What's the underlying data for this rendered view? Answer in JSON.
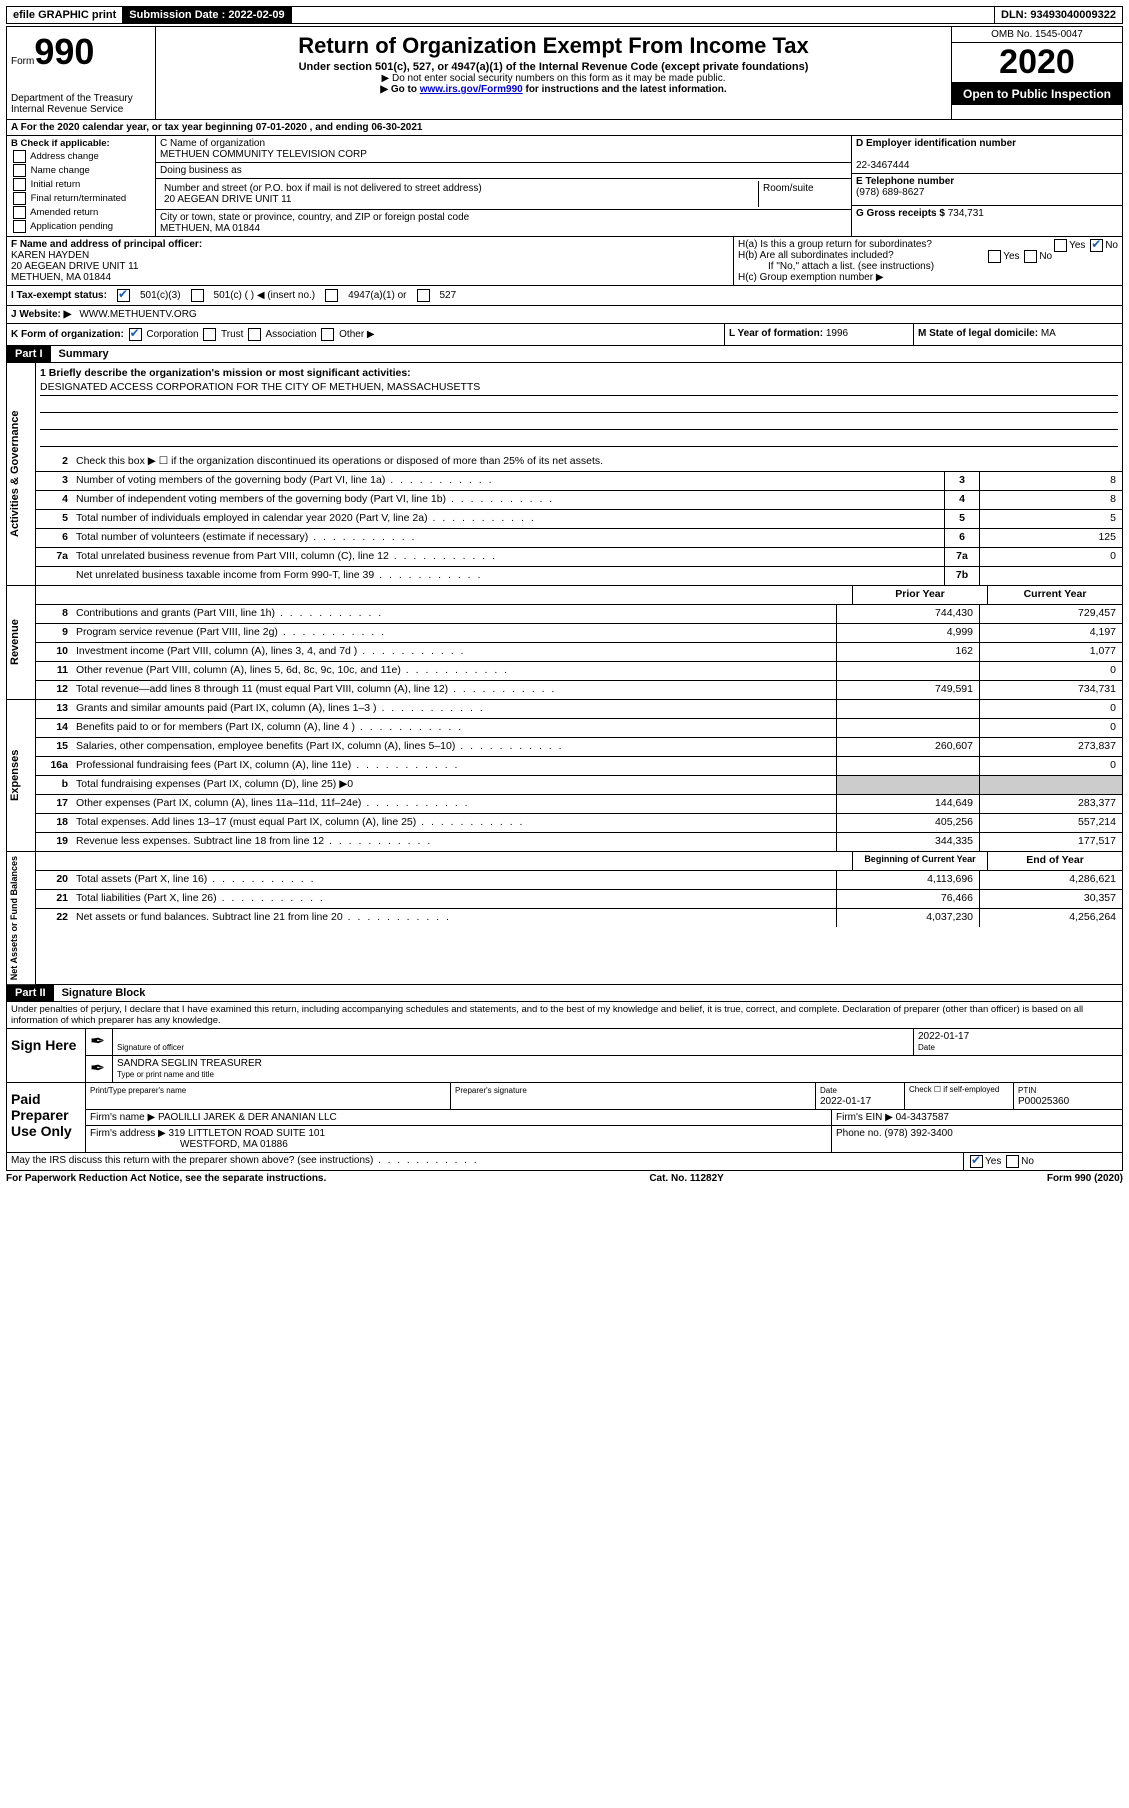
{
  "topbar": {
    "efile": "efile GRAPHIC print",
    "submission_label": "Submission Date : 2022-02-09",
    "dln": "DLN: 93493040009322"
  },
  "header": {
    "form_label": "Form",
    "form_number": "990",
    "dept": "Department of the Treasury",
    "irs": "Internal Revenue Service",
    "title": "Return of Organization Exempt From Income Tax",
    "subtitle": "Under section 501(c), 527, or 4947(a)(1) of the Internal Revenue Code (except private foundations)",
    "instr1": "▶ Do not enter social security numbers on this form as it may be made public.",
    "instr2_pre": "▶ Go to ",
    "instr2_link": "www.irs.gov/Form990",
    "instr2_post": " for instructions and the latest information.",
    "omb": "OMB No. 1545-0047",
    "year": "2020",
    "open": "Open to Public Inspection"
  },
  "rowA": "A For the 2020 calendar year, or tax year beginning 07-01-2020   , and ending 06-30-2021",
  "B": {
    "label": "B Check if applicable:",
    "opts": [
      "Address change",
      "Name change",
      "Initial return",
      "Final return/terminated",
      "Amended return",
      "Application pending"
    ]
  },
  "C": {
    "name_label": "C Name of organization",
    "name": "METHUEN COMMUNITY TELEVISION CORP",
    "dba_label": "Doing business as",
    "addr_label": "Number and street (or P.O. box if mail is not delivered to street address)",
    "room_label": "Room/suite",
    "addr": "20 AEGEAN DRIVE UNIT 11",
    "city_label": "City or town, state or province, country, and ZIP or foreign postal code",
    "city": "METHUEN, MA  01844"
  },
  "D": {
    "label": "D Employer identification number",
    "val": "22-3467444"
  },
  "E": {
    "label": "E Telephone number",
    "val": "(978) 689-8627"
  },
  "G": {
    "label": "G Gross receipts $",
    "val": "734,731"
  },
  "F": {
    "label": "F  Name and address of principal officer:",
    "name": "KAREN HAYDEN",
    "addr1": "20 AEGEAN DRIVE UNIT 11",
    "addr2": "METHUEN, MA  01844"
  },
  "H": {
    "a": "H(a)  Is this a group return for subordinates?",
    "b": "H(b)  Are all subordinates included?",
    "b_note": "If \"No,\" attach a list. (see instructions)",
    "c": "H(c)  Group exemption number ▶"
  },
  "I": {
    "label": "I  Tax-exempt status:",
    "o1": "501(c)(3)",
    "o2": "501(c) (   ) ◀ (insert no.)",
    "o3": "4947(a)(1) or",
    "o4": "527"
  },
  "J": {
    "label": "J  Website: ▶",
    "val": "WWW.METHUENTV.ORG"
  },
  "K": {
    "label": "K Form of organization:",
    "opts": [
      "Corporation",
      "Trust",
      "Association",
      "Other ▶"
    ]
  },
  "L": {
    "label": "L Year of formation:",
    "val": "1996"
  },
  "M": {
    "label": "M State of legal domicile:",
    "val": "MA"
  },
  "partI": {
    "header": "Part I",
    "title": "Summary",
    "side1": "Activities & Governance",
    "side2": "Revenue",
    "side3": "Expenses",
    "side4": "Net Assets or Fund Balances",
    "l1_label": "1  Briefly describe the organization's mission or most significant activities:",
    "l1_val": "DESIGNATED ACCESS CORPORATION FOR THE CITY OF METHUEN, MASSACHUSETTS",
    "l2": "Check this box ▶ ☐  if the organization discontinued its operations or disposed of more than 25% of its net assets.",
    "lines_gov": [
      {
        "n": "3",
        "d": "Number of voting members of the governing body (Part VI, line 1a)",
        "b": "3",
        "v": "8"
      },
      {
        "n": "4",
        "d": "Number of independent voting members of the governing body (Part VI, line 1b)",
        "b": "4",
        "v": "8"
      },
      {
        "n": "5",
        "d": "Total number of individuals employed in calendar year 2020 (Part V, line 2a)",
        "b": "5",
        "v": "5"
      },
      {
        "n": "6",
        "d": "Total number of volunteers (estimate if necessary)",
        "b": "6",
        "v": "125"
      },
      {
        "n": "7a",
        "d": "Total unrelated business revenue from Part VIII, column (C), line 12",
        "b": "7a",
        "v": "0"
      },
      {
        "n": "",
        "d": "Net unrelated business taxable income from Form 990-T, line 39",
        "b": "7b",
        "v": ""
      }
    ],
    "col_prior": "Prior Year",
    "col_current": "Current Year",
    "lines_rev": [
      {
        "n": "8",
        "d": "Contributions and grants (Part VIII, line 1h)",
        "p": "744,430",
        "c": "729,457"
      },
      {
        "n": "9",
        "d": "Program service revenue (Part VIII, line 2g)",
        "p": "4,999",
        "c": "4,197"
      },
      {
        "n": "10",
        "d": "Investment income (Part VIII, column (A), lines 3, 4, and 7d )",
        "p": "162",
        "c": "1,077"
      },
      {
        "n": "11",
        "d": "Other revenue (Part VIII, column (A), lines 5, 6d, 8c, 9c, 10c, and 11e)",
        "p": "",
        "c": "0"
      },
      {
        "n": "12",
        "d": "Total revenue—add lines 8 through 11 (must equal Part VIII, column (A), line 12)",
        "p": "749,591",
        "c": "734,731"
      }
    ],
    "lines_exp": [
      {
        "n": "13",
        "d": "Grants and similar amounts paid (Part IX, column (A), lines 1–3 )",
        "p": "",
        "c": "0"
      },
      {
        "n": "14",
        "d": "Benefits paid to or for members (Part IX, column (A), line 4 )",
        "p": "",
        "c": "0"
      },
      {
        "n": "15",
        "d": "Salaries, other compensation, employee benefits (Part IX, column (A), lines 5–10)",
        "p": "260,607",
        "c": "273,837"
      },
      {
        "n": "16a",
        "d": "Professional fundraising fees (Part IX, column (A), line 11e)",
        "p": "",
        "c": "0"
      },
      {
        "n": "b",
        "d": "Total fundraising expenses (Part IX, column (D), line 25) ▶0",
        "grey": true
      },
      {
        "n": "17",
        "d": "Other expenses (Part IX, column (A), lines 11a–11d, 11f–24e)",
        "p": "144,649",
        "c": "283,377"
      },
      {
        "n": "18",
        "d": "Total expenses. Add lines 13–17 (must equal Part IX, column (A), line 25)",
        "p": "405,256",
        "c": "557,214"
      },
      {
        "n": "19",
        "d": "Revenue less expenses. Subtract line 18 from line 12",
        "p": "344,335",
        "c": "177,517"
      }
    ],
    "col_beg": "Beginning of Current Year",
    "col_end": "End of Year",
    "lines_net": [
      {
        "n": "20",
        "d": "Total assets (Part X, line 16)",
        "p": "4,113,696",
        "c": "4,286,621"
      },
      {
        "n": "21",
        "d": "Total liabilities (Part X, line 26)",
        "p": "76,466",
        "c": "30,357"
      },
      {
        "n": "22",
        "d": "Net assets or fund balances. Subtract line 21 from line 20",
        "p": "4,037,230",
        "c": "4,256,264"
      }
    ]
  },
  "partII": {
    "header": "Part II",
    "title": "Signature Block",
    "decl": "Under penalties of perjury, I declare that I have examined this return, including accompanying schedules and statements, and to the best of my knowledge and belief, it is true, correct, and complete. Declaration of preparer (other than officer) is based on all information of which preparer has any knowledge.",
    "sign_here": "Sign Here",
    "sig_officer": "Signature of officer",
    "sig_date_label": "Date",
    "sig_date": "2022-01-17",
    "officer_name": "SANDRA SEGLIN  TREASURER",
    "officer_sub": "Type or print name and title",
    "paid": "Paid Preparer Use Only",
    "prep_name_label": "Print/Type preparer's name",
    "prep_sig_label": "Preparer's signature",
    "prep_date_label": "Date",
    "prep_date": "2022-01-17",
    "self_emp": "Check ☐ if self-employed",
    "ptin_label": "PTIN",
    "ptin": "P00025360",
    "firm_name_label": "Firm's name    ▶",
    "firm_name": "PAOLILLI JAREK & DER ANANIAN LLC",
    "firm_ein_label": "Firm's EIN ▶",
    "firm_ein": "04-3437587",
    "firm_addr_label": "Firm's address ▶",
    "firm_addr1": "319 LITTLETON ROAD SUITE 101",
    "firm_addr2": "WESTFORD, MA  01886",
    "phone_label": "Phone no.",
    "phone": "(978) 392-3400",
    "discuss": "May the IRS discuss this return with the preparer shown above? (see instructions)"
  },
  "footer": {
    "left": "For Paperwork Reduction Act Notice, see the separate instructions.",
    "mid": "Cat. No. 11282Y",
    "right": "Form 990 (2020)"
  }
}
